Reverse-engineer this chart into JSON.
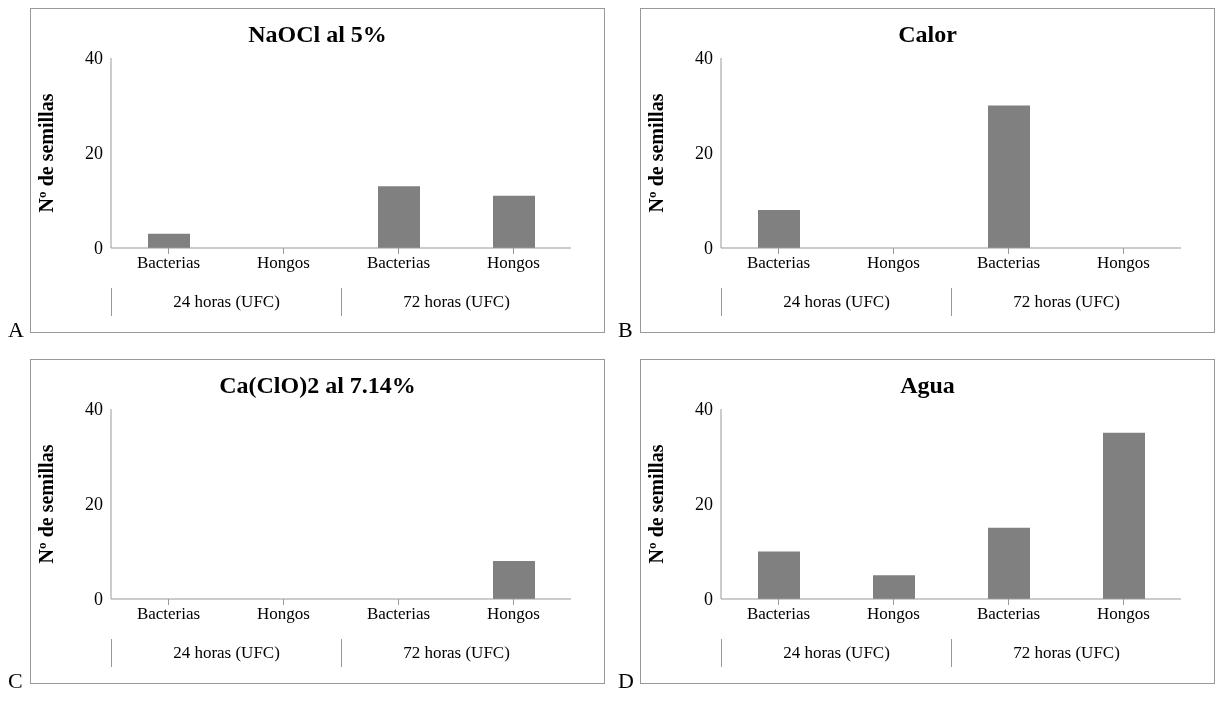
{
  "chart_data": [
    {
      "type": "bar",
      "title": "NaOCl al 5%",
      "ylabel": "Nº de semillas",
      "categories": [
        "Bacterias",
        "Hongos",
        "Bacterias",
        "Hongos"
      ],
      "values": [
        3,
        0,
        13,
        11
      ],
      "color": "#808080",
      "ylim": [
        0,
        40
      ],
      "yticks": [
        0,
        20,
        40
      ],
      "annotations": [
        "24 horas (UFC)",
        "72 horas (UFC)",
        "A"
      ]
    },
    {
      "type": "bar",
      "title": "Calor",
      "ylabel": "Nº de semillas",
      "categories": [
        "Bacterias",
        "Hongos",
        "Bacterias",
        "Hongos"
      ],
      "values": [
        8,
        0,
        30,
        0
      ],
      "color": "#808080",
      "ylim": [
        0,
        40
      ],
      "yticks": [
        0,
        20,
        40
      ],
      "annotations": [
        "24 horas (UFC)",
        "72 horas (UFC)",
        "B"
      ]
    },
    {
      "type": "bar",
      "title": "Ca(ClO)2 al 7.14%",
      "ylabel": "Nº de semillas",
      "categories": [
        "Bacterias",
        "Hongos",
        "Bacterias",
        "Hongos"
      ],
      "values": [
        0,
        0,
        0,
        8
      ],
      "color": "#808080",
      "ylim": [
        0,
        40
      ],
      "yticks": [
        0,
        20,
        40
      ],
      "annotations": [
        "24 horas (UFC)",
        "72 horas (UFC)",
        "C"
      ]
    },
    {
      "type": "bar",
      "title": "Agua",
      "ylabel": "Nº de semillas",
      "categories": [
        "Bacterias",
        "Hongos",
        "Bacterias",
        "Hongos"
      ],
      "values": [
        10,
        5,
        15,
        35
      ],
      "color": "#808080",
      "ylim": [
        0,
        40
      ],
      "yticks": [
        0,
        20,
        40
      ],
      "annotations": [
        "24 horas (UFC)",
        "72 horas (UFC)",
        "D"
      ]
    }
  ]
}
